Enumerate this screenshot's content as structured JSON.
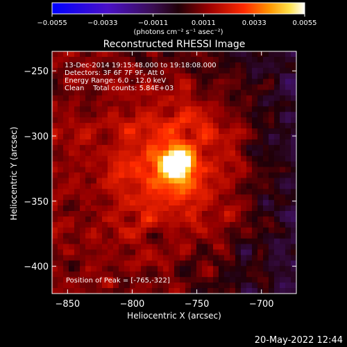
{
  "chart_data": {
    "type": "heatmap",
    "title": "Reconstructed RHESSI Image",
    "xlabel": "Heliocentric X (arcsec)",
    "ylabel": "Heliocentric Y (arcsec)",
    "xlim": [
      -862,
      -673
    ],
    "ylim": [
      -421,
      -235
    ],
    "x_ticks": [
      -850,
      -800,
      -750,
      -700
    ],
    "y_ticks": [
      -250,
      -300,
      -350,
      -400
    ],
    "x_tick_labels": [
      "−850",
      "−800",
      "−750",
      "−700"
    ],
    "y_tick_labels": [
      "−250",
      "−300",
      "−350",
      "−400"
    ],
    "colorbar": {
      "range": [
        -0.0055,
        0.0055
      ],
      "ticks": [
        -0.0055,
        -0.0033,
        -0.0011,
        0.0011,
        0.0033,
        0.0055
      ],
      "tick_labels": [
        "−0.0055",
        "−0.0033",
        "−0.0011",
        "0.0011",
        "0.0033",
        "0.0055"
      ],
      "unit_label": "(photons cm⁻² s⁻¹ asec⁻²)"
    },
    "peak": {
      "x": -765,
      "y": -322,
      "value": 0.0055
    },
    "annotations": {
      "line1": "13-Dec-2014 19:15:48.000 to 19:18:08.000",
      "line2": "Detectors: 3F 6F 7F 9F, Att 0",
      "line3": "Energy Range: 6.0 - 12.0 keV",
      "line4": "Clean    Total counts: 5.84E+03",
      "peak_text": "Position of Peak = [-765,-322]"
    },
    "grid": false
  },
  "footer": {
    "date_stamp": "20-May-2022 12:44"
  },
  "colors": {
    "background": "#000000",
    "text": "#ffffff",
    "axes": "#ffffff"
  }
}
